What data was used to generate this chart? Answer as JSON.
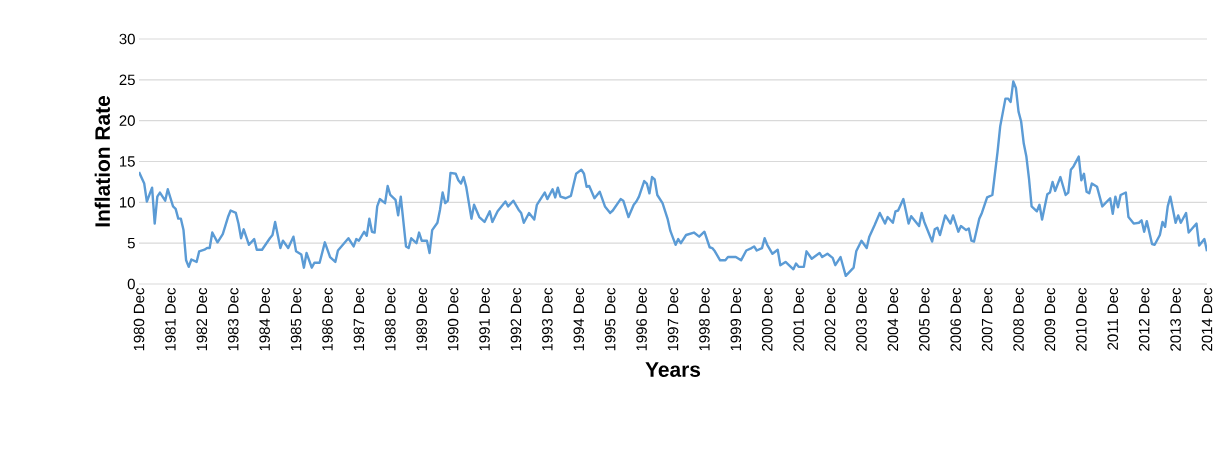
{
  "chart_data": {
    "type": "line",
    "xlabel": "Years",
    "ylabel": "Inflation Rate",
    "grid": "y",
    "xlim": [
      "1980-12",
      "2014-12"
    ],
    "ylim": [
      0,
      30
    ],
    "yticks": [
      0,
      5,
      10,
      15,
      20,
      25,
      30
    ],
    "xticks": [
      {
        "value": "1980-12",
        "label": "1980 Dec"
      },
      {
        "value": "1981-12",
        "label": "1981 Dec"
      },
      {
        "value": "1982-12",
        "label": "1982 Dec"
      },
      {
        "value": "1983-12",
        "label": "1983 Dec"
      },
      {
        "value": "1984-12",
        "label": "1984 Dec"
      },
      {
        "value": "1985-12",
        "label": "1985 Dec"
      },
      {
        "value": "1986-12",
        "label": "1986 Dec"
      },
      {
        "value": "1987-12",
        "label": "1987 Dec"
      },
      {
        "value": "1988-12",
        "label": "1988 Dec"
      },
      {
        "value": "1989-12",
        "label": "1989 Dec"
      },
      {
        "value": "1990-12",
        "label": "1990 Dec"
      },
      {
        "value": "1991-12",
        "label": "1991 Dec"
      },
      {
        "value": "1992-12",
        "label": "1992 Dec"
      },
      {
        "value": "1993-12",
        "label": "1993 Dec"
      },
      {
        "value": "1994-12",
        "label": "1994 Dec"
      },
      {
        "value": "1995-12",
        "label": "1995 Dec"
      },
      {
        "value": "1996-12",
        "label": "1996 Dec"
      },
      {
        "value": "1997-12",
        "label": "1997 Dec"
      },
      {
        "value": "1998-12",
        "label": "1998 Dec"
      },
      {
        "value": "1999-12",
        "label": "1999 Dec"
      },
      {
        "value": "2000-12",
        "label": "2000 Dec"
      },
      {
        "value": "2001-12",
        "label": "2001 Dec"
      },
      {
        "value": "2002-12",
        "label": "2002 Dec"
      },
      {
        "value": "2003-12",
        "label": "2003 Dec"
      },
      {
        "value": "2004-12",
        "label": "2004 Dec"
      },
      {
        "value": "2005-12",
        "label": "2005 Dec"
      },
      {
        "value": "2006-12",
        "label": "2006 Dec"
      },
      {
        "value": "2007-12",
        "label": "2007 Dec"
      },
      {
        "value": "2008-12",
        "label": "2008 Dec"
      },
      {
        "value": "2009-12",
        "label": "2009 Dec"
      },
      {
        "value": "2010-12",
        "label": "2010 Dec"
      },
      {
        "value": "2011-12",
        "label": "2011 Dec"
      },
      {
        "value": "2012-12",
        "label": "2012 Dec"
      },
      {
        "value": "2013-12",
        "label": "2013 Dec"
      },
      {
        "value": "2014-12",
        "label": "2014 Dec"
      }
    ],
    "series": [
      {
        "color": "#5b9bd5",
        "x": [
          "1980-12",
          "1981-02",
          "1981-03",
          "1981-05",
          "1981-06",
          "1981-07",
          "1981-08",
          "1981-10",
          "1981-11",
          "1982-01",
          "1982-02",
          "1982-03",
          "1982-04",
          "1982-05",
          "1982-06",
          "1982-07",
          "1982-08",
          "1982-10",
          "1982-11",
          "1983-01",
          "1983-02",
          "1983-03",
          "1983-04",
          "1983-06",
          "1983-08",
          "1983-10",
          "1983-11",
          "1984-01",
          "1984-02",
          "1984-03",
          "1984-04",
          "1984-06",
          "1984-08",
          "1984-09",
          "1984-11",
          "1985-02",
          "1985-03",
          "1985-04",
          "1985-06",
          "1985-07",
          "1985-09",
          "1985-11",
          "1985-12",
          "1986-02",
          "1986-03",
          "1986-04",
          "1986-06",
          "1986-07",
          "1986-09",
          "1986-11",
          "1987-01",
          "1987-03",
          "1987-04",
          "1987-08",
          "1987-10",
          "1987-11",
          "1987-12",
          "1988-02",
          "1988-03",
          "1988-04",
          "1988-05",
          "1988-06",
          "1988-07",
          "1988-08",
          "1988-10",
          "1988-11",
          "1988-12",
          "1989-02",
          "1989-03",
          "1989-04",
          "1989-06",
          "1989-07",
          "1989-08",
          "1989-10",
          "1989-11",
          "1989-12",
          "1990-02",
          "1990-03",
          "1990-04",
          "1990-06",
          "1990-07",
          "1990-08",
          "1990-09",
          "1990-10",
          "1990-11",
          "1991-01",
          "1991-02",
          "1991-03",
          "1991-04",
          "1991-05",
          "1991-07",
          "1991-08",
          "1991-10",
          "1991-12",
          "1992-02",
          "1992-03",
          "1992-05",
          "1992-06",
          "1992-08",
          "1992-09",
          "1992-11",
          "1993-01",
          "1993-02",
          "1993-03",
          "1993-05",
          "1993-07",
          "1993-08",
          "1993-10",
          "1993-11",
          "1993-12",
          "1994-02",
          "1994-03",
          "1994-04",
          "1994-05",
          "1994-07",
          "1994-09",
          "1994-11",
          "1995-01",
          "1995-02",
          "1995-03",
          "1995-04",
          "1995-06",
          "1995-08",
          "1995-10",
          "1995-12",
          "1996-01",
          "1996-04",
          "1996-05",
          "1996-07",
          "1996-09",
          "1996-10",
          "1996-11",
          "1997-01",
          "1997-02",
          "1997-03",
          "1997-04",
          "1997-05",
          "1997-06",
          "1997-08",
          "1997-09",
          "1997-10",
          "1997-11",
          "1998-01",
          "1998-02",
          "1998-03",
          "1998-05",
          "1998-08",
          "1998-10",
          "1998-12",
          "1999-02",
          "1999-03",
          "1999-04",
          "1999-06",
          "1999-08",
          "1999-09",
          "1999-11",
          "1999-12",
          "2000-02",
          "2000-04",
          "2000-06",
          "2000-07",
          "2000-08",
          "2000-10",
          "2000-11",
          "2000-12",
          "2001-02",
          "2001-04",
          "2001-05",
          "2001-07",
          "2001-10",
          "2001-11",
          "2001-12",
          "2002-02",
          "2002-03",
          "2002-05",
          "2002-08",
          "2002-09",
          "2002-11",
          "2003-01",
          "2003-02",
          "2003-04",
          "2003-06",
          "2003-09",
          "2003-10",
          "2003-12",
          "2004-02",
          "2004-03",
          "2004-05",
          "2004-07",
          "2004-09",
          "2004-10",
          "2004-12",
          "2005-01",
          "2005-02",
          "2005-04",
          "2005-06",
          "2005-07",
          "2005-09",
          "2005-10",
          "2005-11",
          "2005-12",
          "2006-03",
          "2006-04",
          "2006-05",
          "2006-06",
          "2006-08",
          "2006-10",
          "2006-11",
          "2007-01",
          "2007-02",
          "2007-04",
          "2007-05",
          "2007-06",
          "2007-07",
          "2007-09",
          "2007-10",
          "2007-12",
          "2008-02",
          "2008-04",
          "2008-05",
          "2008-07",
          "2008-08",
          "2008-09",
          "2008-10",
          "2008-11",
          "2008-12",
          "2009-01",
          "2009-02",
          "2009-03",
          "2009-04",
          "2009-05",
          "2009-07",
          "2009-08",
          "2009-09",
          "2009-11",
          "2009-12",
          "2010-01",
          "2010-02",
          "2010-04",
          "2010-06",
          "2010-07",
          "2010-08",
          "2010-09",
          "2010-11",
          "2010-12",
          "2011-01",
          "2011-02",
          "2011-03",
          "2011-04",
          "2011-06",
          "2011-08",
          "2011-11",
          "2011-12",
          "2012-01",
          "2012-02",
          "2012-03",
          "2012-05",
          "2012-06",
          "2012-08",
          "2012-10",
          "2012-11",
          "2012-12",
          "2013-01",
          "2013-03",
          "2013-04",
          "2013-06",
          "2013-07",
          "2013-08",
          "2013-09",
          "2013-10",
          "2013-12",
          "2014-01",
          "2014-02",
          "2014-04",
          "2014-05",
          "2014-08",
          "2014-09",
          "2014-11",
          "2014-12"
        ],
        "values": [
          13.7,
          12.3,
          10.1,
          11.8,
          7.4,
          10.7,
          11.2,
          10.2,
          11.6,
          9.5,
          9.2,
          8.0,
          8.0,
          6.6,
          2.9,
          2.1,
          3.0,
          2.7,
          4.0,
          4.2,
          4.4,
          4.4,
          6.3,
          5.1,
          6.1,
          8.2,
          9.0,
          8.7,
          7.4,
          5.6,
          6.7,
          4.8,
          5.5,
          4.2,
          4.2,
          5.6,
          6.0,
          7.6,
          4.4,
          5.3,
          4.4,
          5.8,
          4.0,
          3.6,
          2.0,
          3.8,
          2.0,
          2.6,
          2.6,
          5.1,
          3.3,
          2.7,
          4.1,
          5.6,
          4.6,
          5.5,
          5.3,
          6.4,
          5.9,
          8.0,
          6.4,
          6.3,
          9.5,
          10.4,
          9.9,
          12.0,
          10.9,
          10.3,
          8.4,
          10.7,
          4.6,
          4.4,
          5.6,
          5.0,
          6.3,
          5.3,
          5.3,
          3.8,
          6.6,
          7.5,
          9.1,
          11.2,
          9.9,
          10.2,
          13.6,
          13.5,
          12.7,
          12.3,
          13.1,
          11.9,
          8.0,
          9.7,
          8.2,
          7.6,
          8.9,
          7.6,
          8.9,
          9.3,
          10.1,
          9.5,
          10.2,
          9.1,
          8.7,
          7.5,
          8.7,
          7.9,
          9.7,
          10.7,
          11.2,
          10.4,
          11.6,
          10.6,
          11.8,
          10.7,
          10.5,
          10.8,
          13.5,
          14.0,
          13.5,
          11.9,
          12.0,
          10.5,
          11.3,
          9.5,
          8.7,
          9.0,
          10.4,
          10.2,
          8.2,
          9.7,
          10.1,
          10.7,
          12.6,
          12.3,
          11.1,
          13.1,
          12.8,
          10.9,
          9.9,
          8.9,
          7.9,
          6.5,
          4.8,
          5.5,
          5.0,
          6.0,
          6.3,
          5.8,
          6.4,
          4.5,
          4.4,
          4.0,
          2.9,
          2.9,
          3.3,
          3.3,
          3.3,
          2.9,
          4.1,
          4.4,
          4.6,
          4.1,
          4.4,
          5.6,
          4.8,
          3.7,
          4.2,
          2.3,
          2.7,
          1.8,
          2.5,
          2.1,
          2.1,
          4.0,
          3.1,
          3.8,
          3.3,
          3.7,
          3.2,
          2.3,
          3.3,
          1.0,
          2.0,
          4.0,
          5.3,
          4.4,
          5.8,
          7.2,
          8.7,
          7.4,
          8.2,
          7.5,
          8.9,
          9.0,
          10.4,
          7.4,
          8.3,
          7.5,
          7.1,
          8.7,
          7.6,
          5.2,
          6.7,
          6.9,
          6.0,
          8.4,
          7.4,
          8.4,
          6.4,
          7.1,
          6.6,
          6.8,
          5.3,
          5.2,
          8.0,
          8.7,
          10.6,
          10.9,
          16.2,
          19.3,
          22.7,
          22.7,
          22.3,
          24.8,
          24.0,
          21.1,
          19.9,
          17.2,
          15.6,
          12.9,
          9.5,
          8.9,
          9.7,
          7.9,
          11.0,
          11.2,
          12.5,
          11.4,
          13.1,
          10.9,
          11.2,
          14.0,
          14.4,
          15.6,
          12.7,
          13.5,
          11.3,
          11.1,
          12.3,
          11.9,
          9.5,
          10.5,
          8.6,
          10.7,
          9.4,
          10.9,
          11.2,
          8.2,
          7.4,
          7.5,
          7.8,
          6.4,
          7.7,
          4.9,
          4.8,
          6.0,
          7.6,
          7.0,
          9.5,
          10.7,
          7.5,
          8.4,
          7.5,
          8.7,
          6.3,
          7.4,
          4.7,
          5.5,
          4.0
        ]
      }
    ]
  }
}
